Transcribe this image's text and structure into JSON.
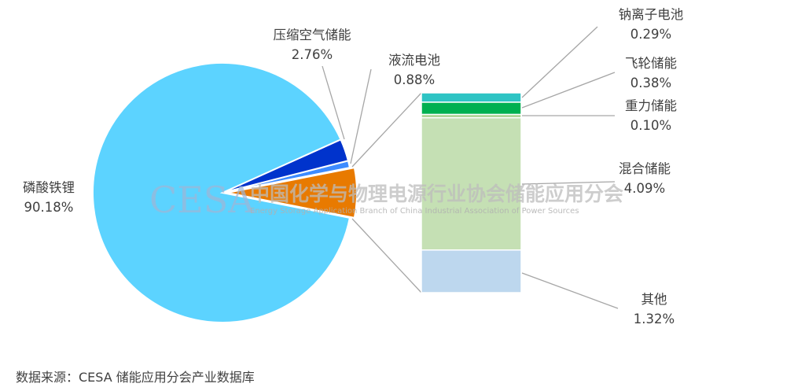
{
  "chart_data": {
    "type": "pie-of-bar",
    "unit": "%",
    "pie": [
      {
        "name": "磷酸铁锂",
        "value": 90.18,
        "label": "90.18%",
        "color": "#5CD3FF"
      },
      {
        "name": "压缩空气储能",
        "value": 2.76,
        "label": "2.76%",
        "color": "#0033CC"
      },
      {
        "name": "液流电池",
        "value": 0.88,
        "label": "0.88%",
        "color": "#3D8BFF"
      },
      {
        "name": "",
        "value": 6.18,
        "label": "",
        "color": "#E87A00"
      }
    ],
    "bar": [
      {
        "name": "钠离子电池",
        "value": 0.29,
        "label": "0.29%",
        "color": "#2EC4C4"
      },
      {
        "name": "飞轮储能",
        "value": 0.38,
        "label": "0.38%",
        "color": "#00B050"
      },
      {
        "name": "重力储能",
        "value": 0.1,
        "label": "0.10%",
        "color": "#A9D18E"
      },
      {
        "name": "混合储能",
        "value": 4.09,
        "label": "4.09%",
        "color": "#C5E0B4"
      },
      {
        "name": "其他",
        "value": 1.32,
        "label": "1.32%",
        "color": "#BDD7EE"
      }
    ]
  },
  "watermark": {
    "logo": "CESA",
    "cn": "中国化学与物理电源行业协会储能应用分会",
    "en": "Energy Storage Application Branch of China Industrial Association of Power Sources"
  },
  "source": "数据来源：CESA 储能应用分会产业数据库"
}
